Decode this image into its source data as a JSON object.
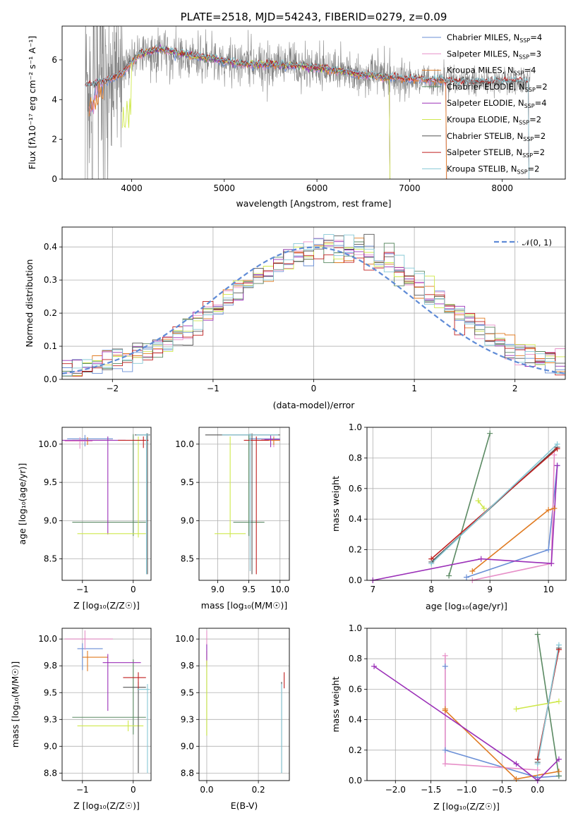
{
  "colors": {
    "Chabrier MILES": "#6a8fd6",
    "Salpeter MILES": "#e78fc8",
    "Kroupa MILES": "#e07b22",
    "Chabrier ELODIE": "#5b8a63",
    "Salpeter ELODIE": "#9b30b8",
    "Kroupa ELODIE": "#cfe84b",
    "Chabrier STELIB": "#555555",
    "Salpeter STELIB": "#c01f1f",
    "Kroupa STELIB": "#86c8d6",
    "data": "#808080",
    "normal": "#5f8bd6"
  },
  "chart_data": [
    {
      "id": "spectrum",
      "type": "line",
      "title": "PLATE=2518, MJD=54243, FIBERID=0279, z=0.09",
      "xlabel": "wavelength [Angstrom, rest frame]",
      "ylabel": "Flux [fλ10⁻¹⁷ erg cm⁻² s⁻¹ A⁻¹]",
      "xlim": [
        3250,
        8680
      ],
      "ylim": [
        0,
        7.7
      ],
      "xticks": [
        4000,
        5000,
        6000,
        7000,
        8000
      ],
      "yticks": [
        0,
        2,
        4,
        6
      ],
      "grid": false,
      "legend_position": "top-right",
      "legend": [
        {
          "model": "Chabrier MILES",
          "label": "Chabrier MILES, N",
          "sub": "SSP",
          "eq": "=4"
        },
        {
          "model": "Salpeter MILES",
          "label": "Salpeter MILES, N",
          "sub": "SSP",
          "eq": "=3"
        },
        {
          "model": "Kroupa MILES",
          "label": "Kroupa MILES, N",
          "sub": "SSP",
          "eq": "=4"
        },
        {
          "model": "Chabrier ELODIE",
          "label": "Chabrier ELODIE, N",
          "sub": "SSP",
          "eq": "=2"
        },
        {
          "model": "Salpeter ELODIE",
          "label": "Salpeter ELODIE, N",
          "sub": "SSP",
          "eq": "=4"
        },
        {
          "model": "Kroupa ELODIE",
          "label": "Kroupa ELODIE, N",
          "sub": "SSP",
          "eq": "=2"
        },
        {
          "model": "Chabrier STELIB",
          "label": "Chabrier STELIB, N",
          "sub": "SSP",
          "eq": "=2"
        },
        {
          "model": "Salpeter STELIB",
          "label": "Salpeter STELIB, N",
          "sub": "SSP",
          "eq": "=2"
        },
        {
          "model": "Kroupa STELIB",
          "label": "Kroupa STELIB, N",
          "sub": "SSP",
          "eq": "=2"
        }
      ],
      "continuum_knots": [
        [
          3500,
          4.7
        ],
        [
          3700,
          4.9
        ],
        [
          3900,
          5.3
        ],
        [
          4000,
          5.9
        ],
        [
          4100,
          6.3
        ],
        [
          4300,
          6.55
        ],
        [
          4500,
          6.35
        ],
        [
          4800,
          6.1
        ],
        [
          5000,
          5.95
        ],
        [
          5200,
          5.8
        ],
        [
          5500,
          5.75
        ],
        [
          5800,
          5.7
        ],
        [
          6000,
          5.6
        ],
        [
          6300,
          5.4
        ],
        [
          6500,
          5.25
        ],
        [
          6800,
          5.1
        ],
        [
          7000,
          5.05
        ],
        [
          7200,
          5.0
        ],
        [
          7500,
          4.9
        ],
        [
          7800,
          4.85
        ],
        [
          8000,
          4.9
        ],
        [
          8300,
          4.9
        ]
      ],
      "model_ranges": {
        "Chabrier MILES": [
          3540,
          7410
        ],
        "Salpeter MILES": [
          3540,
          7410
        ],
        "Kroupa MILES": [
          3540,
          7410
        ],
        "Chabrier ELODIE": [
          4000,
          6800
        ],
        "Salpeter ELODIE": [
          4000,
          6800
        ],
        "Kroupa ELODIE": [
          3900,
          6800
        ],
        "Chabrier STELIB": [
          3500,
          8300
        ],
        "Salpeter STELIB": [
          3500,
          8300
        ],
        "Kroupa STELIB": [
          3500,
          8300
        ]
      },
      "data_range": [
        3500,
        8300
      ]
    },
    {
      "id": "residuals",
      "type": "histogram",
      "xlabel": "(data-model)/error",
      "ylabel": "Normed distribution",
      "xlim": [
        -2.5,
        2.5
      ],
      "ylim": [
        0,
        0.46
      ],
      "xticks": [
        -2,
        -1,
        0,
        1,
        2
      ],
      "yticks": [
        0.0,
        0.1,
        0.2,
        0.3,
        0.4
      ],
      "grid": true,
      "legend_position": "top-right",
      "legend_label": "𝒩(0, 1)",
      "bin_width": 0.1
    },
    {
      "id": "age_vs_Z",
      "type": "errorbar",
      "xlabel": "Z [log₁₀(Z/Z☉)]",
      "ylabel": "age  [log₁₀(age/yr)]",
      "xlim": [
        -1.4,
        0.35
      ],
      "ylim": [
        8.22,
        10.22
      ],
      "xticks": [
        -1,
        0
      ],
      "yticks": [
        8.5,
        9.0,
        9.5,
        10.0
      ],
      "grid": true,
      "points": [
        {
          "model": "Chabrier MILES",
          "x": -0.95,
          "y": 10.07,
          "xerr": [
            0.35,
            0.55
          ],
          "yerr": [
            0.1,
            0.05
          ]
        },
        {
          "model": "Salpeter MILES",
          "x": -1.05,
          "y": 10.04,
          "xerr": [
            0.3,
            0.25
          ],
          "yerr": [
            0.1,
            0.05
          ]
        },
        {
          "model": "Kroupa MILES",
          "x": -0.9,
          "y": 10.05,
          "xerr": [
            0.3,
            0.5
          ],
          "yerr": [
            0.06,
            0.04
          ]
        },
        {
          "model": "Chabrier ELODIE",
          "x": 0.0,
          "y": 8.98,
          "xerr": [
            1.2,
            0.25
          ],
          "yerr": [
            0.18,
            1.15
          ]
        },
        {
          "model": "Salpeter ELODIE",
          "x": -0.5,
          "y": 10.05,
          "xerr": [
            0.9,
            0.35
          ],
          "yerr": [
            1.23,
            0.05
          ]
        },
        {
          "model": "Kroupa ELODIE",
          "x": 0.1,
          "y": 8.83,
          "xerr": [
            1.2,
            0.15
          ],
          "yerr": [
            0.05,
            1.27
          ]
        },
        {
          "model": "Chabrier STELIB",
          "x": 0.28,
          "y": 10.12,
          "xerr": [
            0.25,
            0.05
          ],
          "yerr": [
            1.82,
            0.02
          ]
        },
        {
          "model": "Salpeter STELIB",
          "x": 0.2,
          "y": 10.05,
          "xerr": [
            0.5,
            0.1
          ],
          "yerr": [
            0.1,
            0.05
          ]
        },
        {
          "model": "Kroupa STELIB",
          "x": 0.26,
          "y": 10.12,
          "xerr": [
            0.2,
            0.05
          ],
          "yerr": [
            1.82,
            0.02
          ]
        }
      ]
    },
    {
      "id": "age_vs_mass",
      "type": "errorbar",
      "xlabel": "mass [log₁₀(M/M☉)]",
      "ylabel": "",
      "xlim": [
        8.7,
        10.15
      ],
      "ylim": [
        8.22,
        10.22
      ],
      "xticks": [
        9.0,
        9.5,
        10.0
      ],
      "yticks": [
        8.5,
        9.0,
        9.5,
        10.0
      ],
      "grid": true,
      "points": [
        {
          "model": "Chabrier MILES",
          "x": 9.85,
          "y": 10.07,
          "xerr": [
            0.35,
            0.15
          ],
          "yerr": [
            0.1,
            0.05
          ]
        },
        {
          "model": "Salpeter MILES",
          "x": 9.9,
          "y": 10.06,
          "xerr": [
            0.2,
            0.1
          ],
          "yerr": [
            0.1,
            0.05
          ]
        },
        {
          "model": "Kroupa MILES",
          "x": 9.9,
          "y": 10.05,
          "xerr": [
            0.2,
            0.1
          ],
          "yerr": [
            0.06,
            0.04
          ]
        },
        {
          "model": "Chabrier ELODIE",
          "x": 9.5,
          "y": 8.98,
          "xerr": [
            0.25,
            0.25
          ],
          "yerr": [
            0.18,
            1.15
          ]
        },
        {
          "model": "Salpeter ELODIE",
          "x": 9.85,
          "y": 10.06,
          "xerr": [
            0.1,
            0.15
          ],
          "yerr": [
            0.1,
            0.05
          ]
        },
        {
          "model": "Kroupa ELODIE",
          "x": 9.2,
          "y": 8.83,
          "xerr": [
            0.25,
            0.25
          ],
          "yerr": [
            0.05,
            1.27
          ]
        },
        {
          "model": "Chabrier STELIB",
          "x": 9.55,
          "y": 10.12,
          "xerr": [
            0.75,
            0.45
          ],
          "yerr": [
            1.82,
            0.02
          ]
        },
        {
          "model": "Salpeter STELIB",
          "x": 9.62,
          "y": 10.05,
          "xerr": [
            0.2,
            0.2
          ],
          "yerr": [
            1.75,
            0.05
          ]
        },
        {
          "model": "Kroupa STELIB",
          "x": 9.52,
          "y": 10.12,
          "xerr": [
            0.45,
            0.45
          ],
          "yerr": [
            1.78,
            0.02
          ]
        }
      ]
    },
    {
      "id": "massweight_vs_age",
      "type": "line",
      "xlabel": "age  [log₁₀(age/yr)]",
      "ylabel": "mass weight",
      "xlim": [
        6.9,
        10.3
      ],
      "ylim": [
        0,
        1.0
      ],
      "xticks": [
        7,
        8,
        9,
        10
      ],
      "yticks": [
        0.0,
        0.2,
        0.4,
        0.6,
        0.8,
        1.0
      ],
      "grid": true,
      "series": [
        {
          "model": "Chabrier MILES",
          "x": [
            8.6,
            10.0,
            10.15
          ],
          "y": [
            0.02,
            0.2,
            0.75
          ]
        },
        {
          "model": "Salpeter MILES",
          "x": [
            8.7,
            10.05,
            10.1
          ],
          "y": [
            0.0,
            0.11,
            0.82
          ]
        },
        {
          "model": "Kroupa MILES",
          "x": [
            8.7,
            10.0,
            10.1
          ],
          "y": [
            0.06,
            0.46,
            0.47
          ]
        },
        {
          "model": "Chabrier ELODIE",
          "x": [
            8.3,
            9.0
          ],
          "y": [
            0.03,
            0.96
          ]
        },
        {
          "model": "Salpeter ELODIE",
          "x": [
            7.0,
            8.85,
            10.05,
            10.15
          ],
          "y": [
            0.0,
            0.14,
            0.11,
            0.75
          ]
        },
        {
          "model": "Kroupa ELODIE",
          "x": [
            8.8,
            8.9
          ],
          "y": [
            0.52,
            0.47
          ]
        },
        {
          "model": "Chabrier STELIB",
          "x": [
            8.0,
            10.15
          ],
          "y": [
            0.12,
            0.87
          ]
        },
        {
          "model": "Salpeter STELIB",
          "x": [
            8.0,
            10.15
          ],
          "y": [
            0.14,
            0.86
          ]
        },
        {
          "model": "Kroupa STELIB",
          "x": [
            8.0,
            10.15
          ],
          "y": [
            0.11,
            0.89
          ]
        }
      ]
    },
    {
      "id": "mass_vs_Z",
      "type": "errorbar",
      "xlabel": "Z [log₁₀(Z/Z☉)]",
      "ylabel": "mass [log₁₀(M/M☉)]",
      "xlim": [
        -1.4,
        0.35
      ],
      "ylim": [
        8.68,
        10.1
      ],
      "xticks": [
        -1,
        0
      ],
      "yticks": [
        8.75,
        9.0,
        9.25,
        9.5,
        9.75,
        10.0
      ],
      "grid": true,
      "points": [
        {
          "model": "Chabrier MILES",
          "x": -1.0,
          "y": 9.91,
          "xerr": [
            0.1,
            0.4
          ],
          "yerr": [
            0.2,
            0.05
          ]
        },
        {
          "model": "Salpeter MILES",
          "x": -0.95,
          "y": 10.0,
          "xerr": [
            0.4,
            0.55
          ],
          "yerr": [
            0.1,
            0.08
          ]
        },
        {
          "model": "Kroupa MILES",
          "x": -0.9,
          "y": 9.83,
          "xerr": [
            0.1,
            0.4
          ],
          "yerr": [
            0.13,
            0.06
          ]
        },
        {
          "model": "Chabrier ELODIE",
          "x": 0.0,
          "y": 9.27,
          "xerr": [
            1.2,
            0.25
          ],
          "yerr": [
            0.16,
            0.54
          ]
        },
        {
          "model": "Salpeter ELODIE",
          "x": -0.5,
          "y": 9.78,
          "xerr": [
            0.1,
            0.65
          ],
          "yerr": [
            0.45,
            0.08
          ]
        },
        {
          "model": "Kroupa ELODIE",
          "x": -0.1,
          "y": 9.19,
          "xerr": [
            1.0,
            0.3
          ],
          "yerr": [
            0.05,
            0.05
          ]
        },
        {
          "model": "Chabrier STELIB",
          "x": 0.1,
          "y": 9.55,
          "xerr": [
            0.3,
            0.15
          ],
          "yerr": [
            0.8,
            0.05
          ]
        },
        {
          "model": "Salpeter STELIB",
          "x": 0.1,
          "y": 9.64,
          "xerr": [
            0.3,
            0.15
          ],
          "yerr": [
            0.1,
            0.05
          ]
        },
        {
          "model": "Kroupa STELIB",
          "x": 0.28,
          "y": 9.53,
          "xerr": [
            0.2,
            0.05
          ],
          "yerr": [
            0.78,
            0.05
          ]
        }
      ]
    },
    {
      "id": "mass_vs_ebv",
      "type": "errorbar",
      "xlabel": "E(B-V)",
      "ylabel": "",
      "xlim": [
        -0.03,
        0.32
      ],
      "ylim": [
        8.68,
        10.1
      ],
      "xticks": [
        0.0,
        0.2
      ],
      "yticks": [
        8.75,
        9.0,
        9.25,
        9.5,
        9.75,
        10.0
      ],
      "grid": true,
      "points": [
        {
          "model": "Chabrier MILES",
          "x": 0.0,
          "y": 9.91,
          "yerr": [
            0.1,
            0.05
          ]
        },
        {
          "model": "Salpeter MILES",
          "x": 0.0,
          "y": 10.0,
          "yerr": [
            0.1,
            0.08
          ]
        },
        {
          "model": "Kroupa MILES",
          "x": 0.0,
          "y": 9.83,
          "yerr": [
            0.1,
            0.06
          ]
        },
        {
          "model": "Chabrier ELODIE",
          "x": 0.0,
          "y": 9.3,
          "yerr": [
            0.2,
            0.5
          ]
        },
        {
          "model": "Salpeter ELODIE",
          "x": 0.0,
          "y": 9.85,
          "yerr": [
            0.1,
            0.1
          ]
        },
        {
          "model": "Kroupa ELODIE",
          "x": 0.0,
          "y": 9.2,
          "yerr": [
            0.1,
            0.6
          ]
        },
        {
          "model": "Chabrier STELIB",
          "x": 0.29,
          "y": 9.55,
          "yerr": [
            0.8,
            0.05
          ]
        },
        {
          "model": "Salpeter STELIB",
          "x": 0.3,
          "y": 9.64,
          "yerr": [
            0.1,
            0.05
          ]
        },
        {
          "model": "Kroupa STELIB",
          "x": 0.29,
          "y": 9.53,
          "yerr": [
            0.78,
            0.05
          ]
        }
      ]
    },
    {
      "id": "massweight_vs_Z",
      "type": "line",
      "xlabel": "Z [log₁₀(Z/Z☉)]",
      "ylabel": "mass weight",
      "xlim": [
        -2.4,
        0.4
      ],
      "ylim": [
        0,
        1.0
      ],
      "xticks": [
        -2.0,
        -1.5,
        -1.0,
        -0.5,
        0.0
      ],
      "yticks": [
        0.0,
        0.2,
        0.4,
        0.6,
        0.8,
        1.0
      ],
      "grid": true,
      "series": [
        {
          "model": "Chabrier MILES",
          "x": [
            -1.3,
            -1.3,
            0.0,
            0.3
          ],
          "y": [
            0.75,
            0.2,
            0.02,
            0.03
          ]
        },
        {
          "model": "Salpeter MILES",
          "x": [
            -1.3,
            -1.3,
            0.0
          ],
          "y": [
            0.82,
            0.11,
            0.07
          ]
        },
        {
          "model": "Kroupa MILES",
          "x": [
            -1.3,
            -1.3,
            -0.3,
            0.3
          ],
          "y": [
            0.47,
            0.46,
            0.01,
            0.06
          ]
        },
        {
          "model": "Chabrier ELODIE",
          "x": [
            0.3,
            0.0
          ],
          "y": [
            0.03,
            0.96
          ]
        },
        {
          "model": "Salpeter ELODIE",
          "x": [
            -2.3,
            -0.3,
            0.0,
            0.3
          ],
          "y": [
            0.75,
            0.11,
            0.0,
            0.14
          ]
        },
        {
          "model": "Kroupa ELODIE",
          "x": [
            -0.3,
            0.3
          ],
          "y": [
            0.47,
            0.52
          ]
        },
        {
          "model": "Chabrier STELIB",
          "x": [
            0.0,
            0.3
          ],
          "y": [
            0.12,
            0.87
          ]
        },
        {
          "model": "Salpeter STELIB",
          "x": [
            0.0,
            0.3
          ],
          "y": [
            0.14,
            0.86
          ]
        },
        {
          "model": "Kroupa STELIB",
          "x": [
            0.0,
            0.3
          ],
          "y": [
            0.11,
            0.89
          ]
        }
      ]
    }
  ]
}
